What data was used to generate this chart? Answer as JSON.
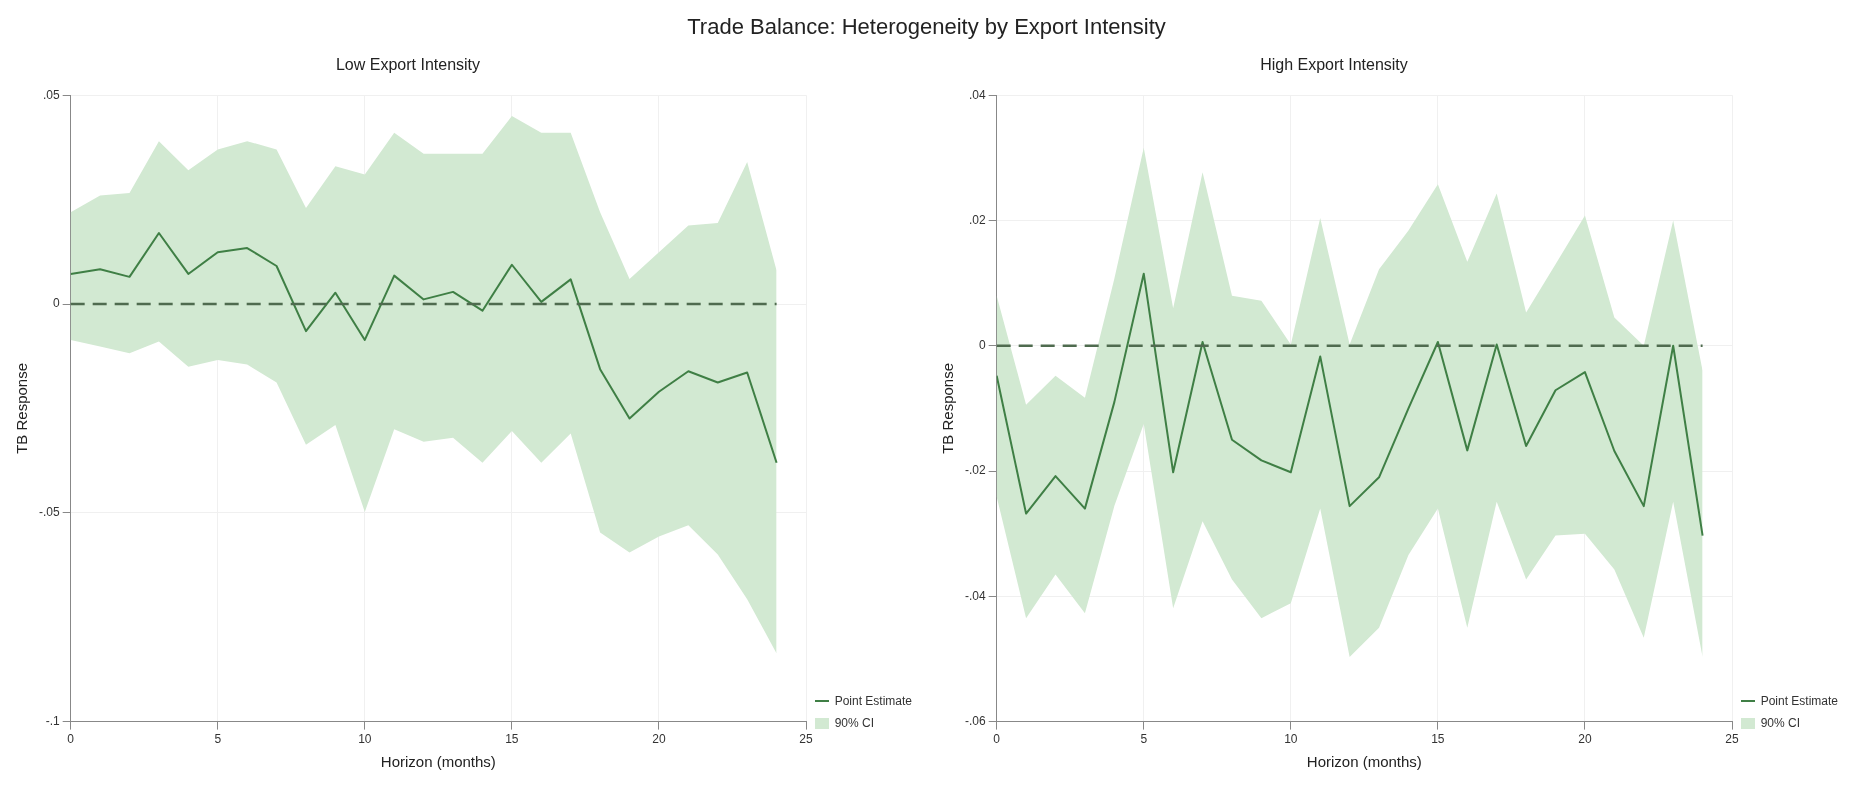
{
  "chart_data": [
    {
      "type": "line",
      "title": "Trade Balance: Heterogeneity by Export Intensity",
      "subtitle": "Low Export Intensity",
      "xlabel": "Horizon (months)",
      "ylabel": "TB Response",
      "x": [
        0,
        1,
        2,
        3,
        4,
        5,
        6,
        7,
        8,
        9,
        10,
        11,
        12,
        13,
        14,
        15,
        16,
        17,
        18,
        19,
        20,
        21,
        22,
        23,
        24
      ],
      "series": [
        {
          "name": "Point Estimate",
          "color": "#3f7f45",
          "values": [
            0.0072,
            0.0083,
            0.0065,
            0.017,
            0.0072,
            0.0124,
            0.0134,
            0.0091,
            -0.0065,
            0.0027,
            -0.0086,
            0.0068,
            0.0011,
            0.0029,
            -0.0016,
            0.0094,
            0.0005,
            0.0059,
            -0.0156,
            -0.0274,
            -0.021,
            -0.0161,
            -0.0188,
            -0.0164,
            -0.038
          ],
          "lower": [
            -0.0086,
            -0.0102,
            -0.0118,
            -0.009,
            -0.015,
            -0.0134,
            -0.0145,
            -0.0188,
            -0.0337,
            -0.029,
            -0.0498,
            -0.03,
            -0.033,
            -0.032,
            -0.038,
            -0.0304,
            -0.038,
            -0.031,
            -0.0547,
            -0.0595,
            -0.0557,
            -0.053,
            -0.06,
            -0.0707,
            -0.0837
          ],
          "upper": [
            0.022,
            0.026,
            0.0266,
            0.039,
            0.032,
            0.037,
            0.039,
            0.037,
            0.023,
            0.033,
            0.031,
            0.041,
            0.036,
            0.036,
            0.036,
            0.045,
            0.041,
            0.041,
            0.022,
            0.006,
            0.0124,
            0.0188,
            0.0194,
            0.034,
            0.008
          ]
        }
      ],
      "annotations": [
        "90% CI"
      ],
      "xlim": [
        0,
        25
      ],
      "xticks": [
        0,
        5,
        10,
        15,
        20,
        25
      ],
      "ylim": [
        -0.1,
        0.05
      ],
      "yticks": [
        {
          "value": -0.1,
          "label": "-.1"
        },
        {
          "value": -0.05,
          "label": "-.05"
        },
        {
          "value": 0,
          "label": "0"
        },
        {
          "value": 0.05,
          "label": ".05"
        }
      ],
      "ref_lines": [
        {
          "axis": "y",
          "value": 0,
          "color": "#4f6b4f",
          "line_style": "dashed"
        }
      ],
      "grid": true,
      "legend": "bottom right",
      "marker": "none",
      "line_style": "solid"
    },
    {
      "type": "line",
      "title": "High Export Intensity",
      "xlabel": "Horizon (months)",
      "ylabel": "TB Response",
      "x": [
        0,
        1,
        2,
        3,
        4,
        5,
        6,
        7,
        8,
        9,
        10,
        11,
        12,
        13,
        14,
        15,
        16,
        17,
        18,
        19,
        20,
        21,
        22,
        23,
        24
      ],
      "series": [
        {
          "name": "Point Estimate",
          "color": "#3f7f45",
          "values": [
            -0.0048,
            -0.0268,
            -0.0208,
            -0.026,
            -0.009,
            0.0115,
            -0.0202,
            0.0006,
            -0.015,
            -0.0183,
            -0.0202,
            -0.0017,
            -0.0256,
            -0.021,
            -0.01,
            0.0006,
            -0.0167,
            0.0002,
            -0.016,
            -0.0071,
            -0.0042,
            -0.0168,
            -0.0256,
            0,
            -0.0303
          ],
          "lower": [
            -0.0241,
            -0.0435,
            -0.0365,
            -0.0427,
            -0.0256,
            -0.0125,
            -0.0419,
            -0.028,
            -0.0373,
            -0.0435,
            -0.0411,
            -0.026,
            -0.0497,
            -0.045,
            -0.0334,
            -0.026,
            -0.045,
            -0.0249,
            -0.0373,
            -0.0303,
            -0.03,
            -0.0357,
            -0.0466,
            -0.0249,
            -0.0497
          ],
          "upper": [
            0.008,
            -0.0094,
            -0.0048,
            -0.0083,
            0.0107,
            0.0316,
            0.006,
            0.0277,
            0.008,
            0.0072,
            0.0002,
            0.0204,
            0.0002,
            0.0122,
            0.0184,
            0.0258,
            0.0134,
            0.0243,
            0.0053,
            0.013,
            0.0208,
            0.0045,
            0,
            0.02,
            -0.004
          ]
        }
      ],
      "annotations": [
        "90% CI"
      ],
      "xlim": [
        0,
        25
      ],
      "xticks": [
        0,
        5,
        10,
        15,
        20,
        25
      ],
      "ylim": [
        -0.06,
        0.04
      ],
      "yticks": [
        {
          "value": -0.06,
          "label": "-.06"
        },
        {
          "value": -0.04,
          "label": "-.04"
        },
        {
          "value": -0.02,
          "label": "-.02"
        },
        {
          "value": 0,
          "label": "0"
        },
        {
          "value": 0.02,
          "label": ".02"
        },
        {
          "value": 0.04,
          "label": ".04"
        }
      ],
      "ref_lines": [
        {
          "axis": "y",
          "value": 0,
          "color": "#4f6b4f",
          "line_style": "dashed"
        }
      ],
      "grid": true,
      "legend": "bottom right",
      "marker": "none",
      "line_style": "solid"
    }
  ]
}
